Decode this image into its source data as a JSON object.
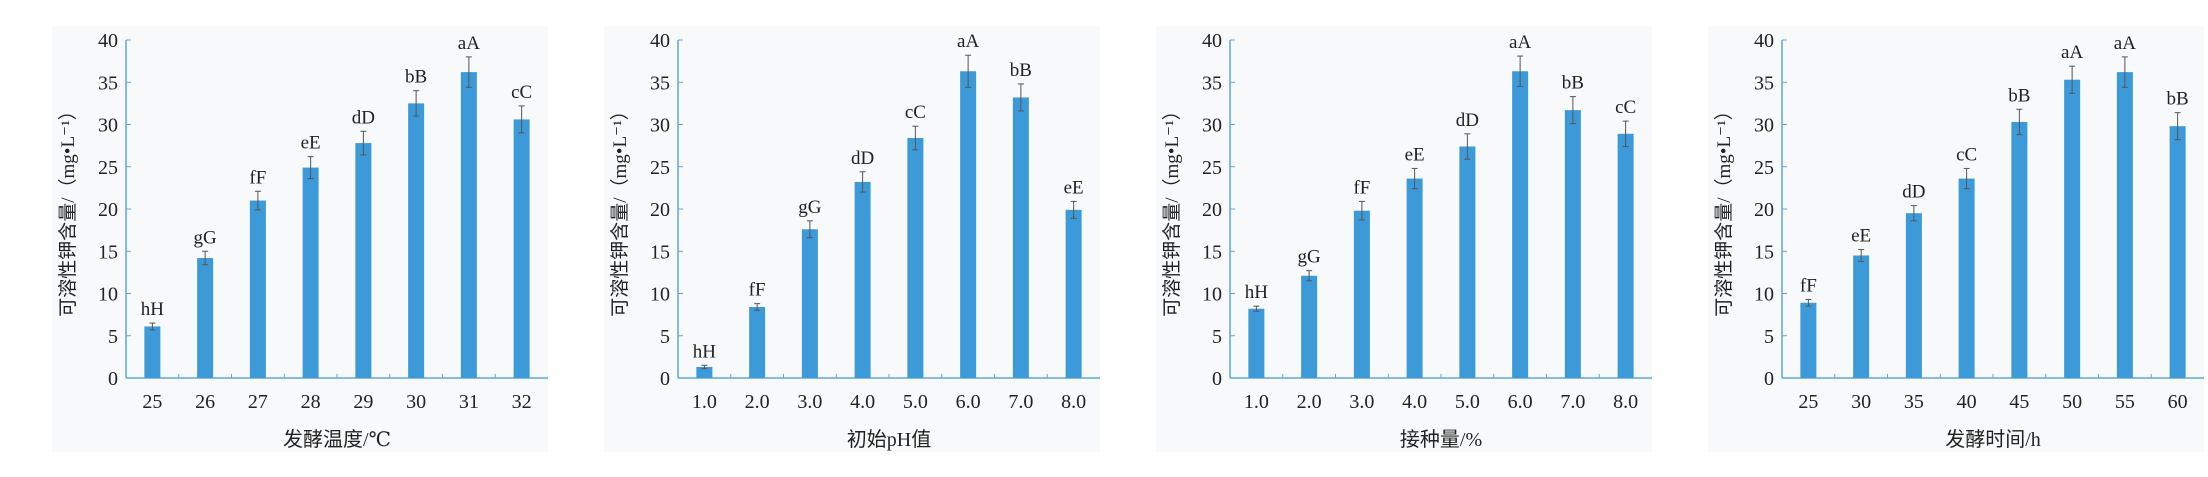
{
  "colors": {
    "bar": "#3d9ad8",
    "axis": "#5fa8dc",
    "error": "#555555",
    "panel_bg": "#f8f9fa"
  },
  "chart_data": [
    {
      "type": "bar",
      "xlabel": "发酵温度/℃",
      "ylabel": "可溶性钾含量/（mg•L⁻¹）",
      "ylim": [
        0,
        40
      ],
      "yticks": [
        "0",
        "5",
        "10",
        "15",
        "20",
        "25",
        "30",
        "35",
        "40"
      ],
      "categories": [
        "25",
        "26",
        "27",
        "28",
        "29",
        "30",
        "31",
        "32"
      ],
      "values": [
        6.1,
        14.2,
        21.0,
        24.9,
        27.8,
        32.5,
        36.2,
        30.6
      ],
      "errors": [
        0.4,
        0.8,
        1.1,
        1.3,
        1.4,
        1.5,
        1.8,
        1.6
      ],
      "labels": [
        "hH",
        "gG",
        "fF",
        "eE",
        "dD",
        "bB",
        "aA",
        "cC"
      ]
    },
    {
      "type": "bar",
      "xlabel": "初始pH值",
      "ylabel": "可溶性钾含量/（mg•L⁻¹）",
      "ylim": [
        0,
        40
      ],
      "yticks": [
        "0",
        "5",
        "10",
        "15",
        "20",
        "25",
        "30",
        "35",
        "40"
      ],
      "categories": [
        "1.0",
        "2.0",
        "3.0",
        "4.0",
        "5.0",
        "6.0",
        "7.0",
        "8.0"
      ],
      "values": [
        1.3,
        8.4,
        17.6,
        23.2,
        28.4,
        36.3,
        33.2,
        19.9
      ],
      "errors": [
        0.2,
        0.4,
        1.0,
        1.2,
        1.4,
        1.9,
        1.6,
        1.0
      ],
      "labels": [
        "hH",
        "fF",
        "gG",
        "dD",
        "cC",
        "aA",
        "bB",
        "eE"
      ]
    },
    {
      "type": "bar",
      "xlabel": "接种量/%",
      "ylabel": "可溶性钾含量/（mg•L⁻¹）",
      "ylim": [
        0,
        40
      ],
      "yticks": [
        "0",
        "5",
        "10",
        "15",
        "20",
        "25",
        "30",
        "35",
        "40"
      ],
      "categories": [
        "1.0",
        "2.0",
        "3.0",
        "4.0",
        "5.0",
        "6.0",
        "7.0",
        "8.0"
      ],
      "values": [
        8.2,
        12.1,
        19.8,
        23.6,
        27.4,
        36.3,
        31.7,
        28.9
      ],
      "errors": [
        0.3,
        0.6,
        1.1,
        1.2,
        1.5,
        1.8,
        1.6,
        1.5
      ],
      "labels": [
        "hH",
        "gG",
        "fF",
        "eE",
        "dD",
        "aA",
        "bB",
        "cC"
      ]
    },
    {
      "type": "bar",
      "xlabel": "发酵时间/h",
      "ylabel": "可溶性钾含量/（mg•L⁻¹）",
      "ylim": [
        0,
        40
      ],
      "yticks": [
        "0",
        "5",
        "10",
        "15",
        "20",
        "25",
        "30",
        "35",
        "40"
      ],
      "categories": [
        "25",
        "30",
        "35",
        "40",
        "45",
        "50",
        "55",
        "60"
      ],
      "values": [
        8.9,
        14.5,
        19.5,
        23.6,
        30.3,
        35.3,
        36.2,
        29.8
      ],
      "errors": [
        0.4,
        0.7,
        0.9,
        1.2,
        1.5,
        1.6,
        1.8,
        1.6
      ],
      "labels": [
        "fF",
        "eE",
        "dD",
        "cC",
        "bB",
        "aA",
        "aA",
        "bB"
      ]
    }
  ]
}
